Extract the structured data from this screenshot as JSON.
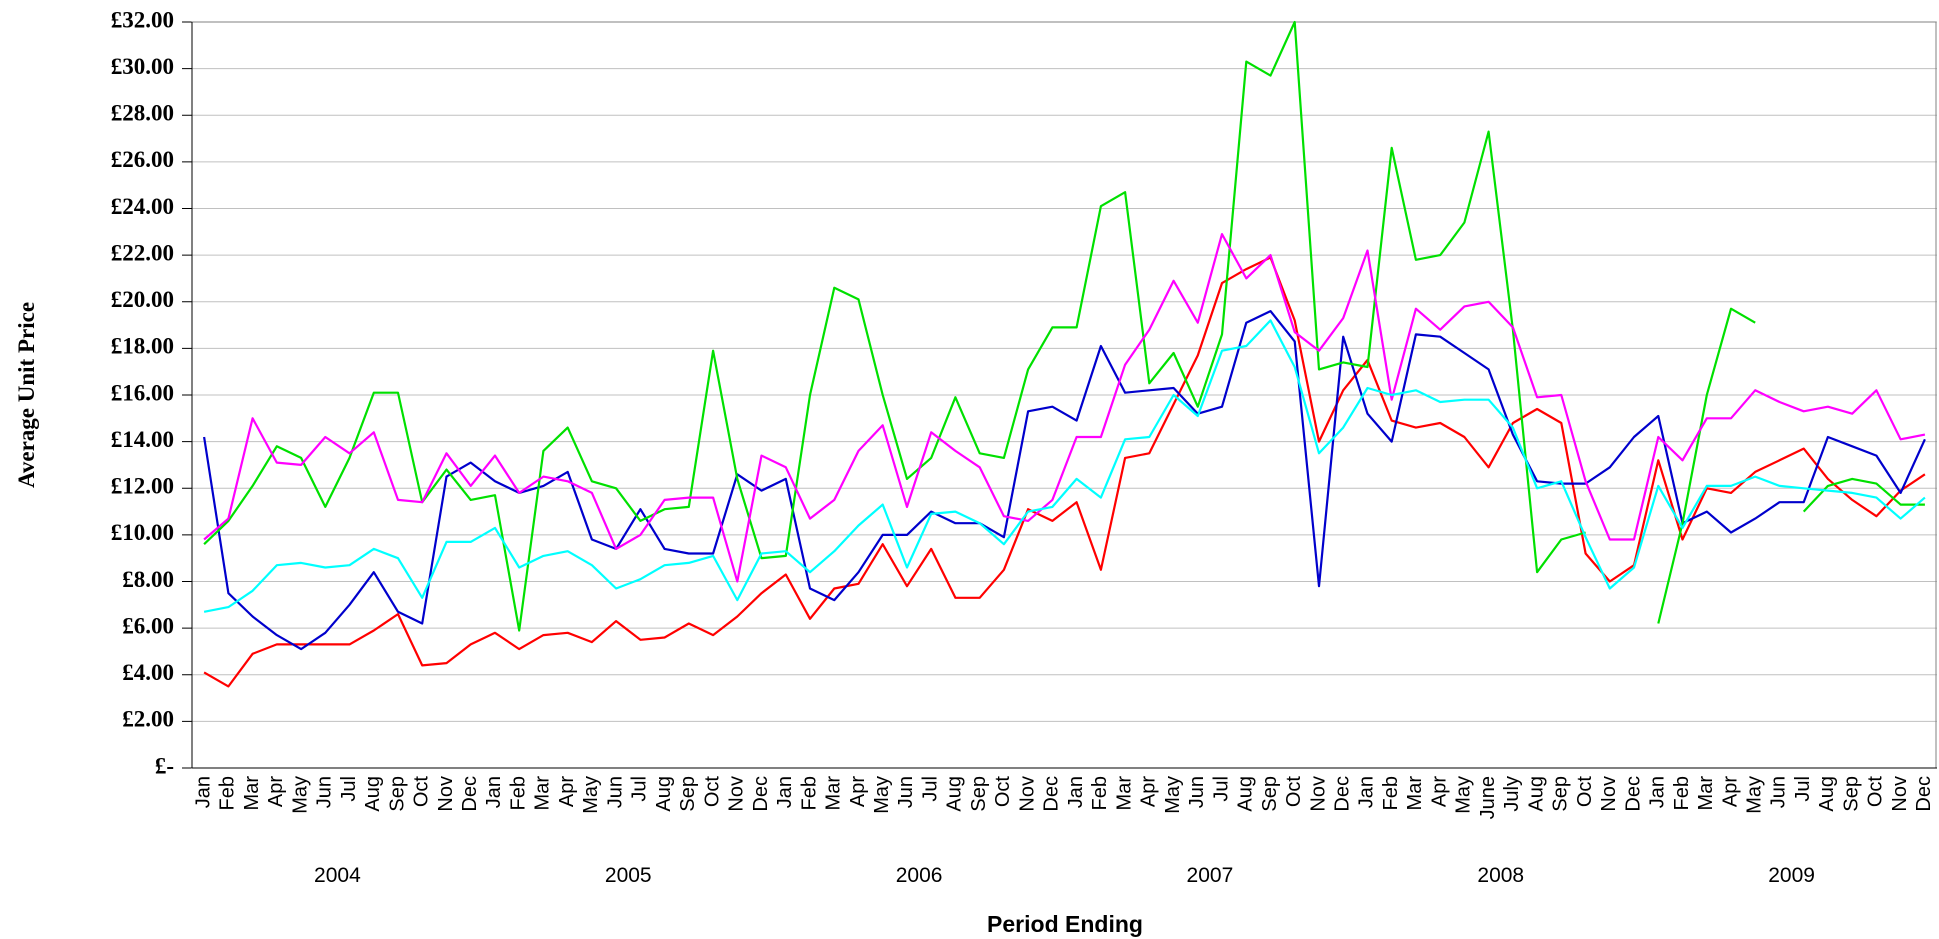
{
  "chart_data": {
    "type": "line",
    "y_label": "Average Unit Price",
    "x_label": "Period Ending",
    "categories": [
      "Jan",
      "Feb",
      "Mar",
      "Apr",
      "May",
      "Jun",
      "Jul",
      "Aug",
      "Sep",
      "Oct",
      "Nov",
      "Dec",
      "Jan",
      "Feb",
      "Mar",
      "Apr",
      "May",
      "Jun",
      "Jul",
      "Aug",
      "Sep",
      "Oct",
      "Nov",
      "Dec",
      "Jan",
      "Feb",
      "Mar",
      "Apr",
      "May",
      "Jun",
      "Jul",
      "Aug",
      "Sep",
      "Oct",
      "Nov",
      "Dec",
      "Jan",
      "Feb",
      "Mar",
      "Apr",
      "May",
      "Jun",
      "Jul",
      "Aug",
      "Sep",
      "Oct",
      "Nov",
      "Dec",
      "Jan",
      "Feb",
      "Mar",
      "Apr",
      "May",
      "June",
      "July",
      "Aug",
      "Sep",
      "Oct",
      "Nov",
      "Dec",
      "Jan",
      "Feb",
      "Mar",
      "Apr",
      "May",
      "Jun",
      "Jul",
      "Aug",
      "Sep",
      "Oct",
      "Nov",
      "Dec"
    ],
    "years": [
      "2004",
      "2005",
      "2006",
      "2007",
      "2008",
      "2009"
    ],
    "ylim": [
      0,
      32
    ],
    "yticks": [
      {
        "value": 0,
        "label": "£-"
      },
      {
        "value": 2,
        "label": "£2.00"
      },
      {
        "value": 4,
        "label": "£4.00"
      },
      {
        "value": 6,
        "label": "£6.00"
      },
      {
        "value": 8,
        "label": "£8.00"
      },
      {
        "value": 10,
        "label": "£10.00"
      },
      {
        "value": 12,
        "label": "£12.00"
      },
      {
        "value": 14,
        "label": "£14.00"
      },
      {
        "value": 16,
        "label": "£16.00"
      },
      {
        "value": 18,
        "label": "£18.00"
      },
      {
        "value": 20,
        "label": "£20.00"
      },
      {
        "value": 22,
        "label": "£22.00"
      },
      {
        "value": 24,
        "label": "£24.00"
      },
      {
        "value": 26,
        "label": "£26.00"
      },
      {
        "value": 28,
        "label": "£28.00"
      },
      {
        "value": 30,
        "label": "£30.00"
      },
      {
        "value": 32,
        "label": "£32.00"
      }
    ],
    "grid": true,
    "series": [
      {
        "color": "#ff0000",
        "values": [
          4.1,
          3.5,
          4.9,
          5.3,
          5.3,
          5.3,
          5.3,
          5.9,
          6.6,
          4.4,
          4.5,
          5.3,
          5.8,
          5.1,
          5.7,
          5.8,
          5.4,
          6.3,
          5.5,
          5.6,
          6.2,
          5.7,
          6.5,
          7.5,
          8.3,
          6.4,
          7.7,
          7.9,
          9.6,
          7.8,
          9.4,
          7.3,
          7.3,
          8.5,
          11.1,
          10.6,
          11.4,
          8.5,
          13.3,
          13.5,
          15.6,
          17.7,
          20.8,
          21.4,
          21.9,
          19.2,
          14.0,
          16.2,
          17.5,
          14.9,
          14.6,
          14.8,
          14.2,
          12.9,
          14.8,
          15.4,
          14.8,
          9.2,
          8.0,
          8.7,
          13.2,
          9.8,
          12.0,
          11.8,
          12.7,
          13.2,
          13.7,
          12.4,
          11.5,
          10.8,
          11.9,
          12.6
        ]
      },
      {
        "color": "#0000cc",
        "values": [
          14.2,
          7.5,
          6.5,
          5.7,
          5.1,
          5.8,
          7.0,
          8.4,
          6.7,
          6.2,
          12.5,
          13.1,
          12.3,
          11.8,
          12.1,
          12.7,
          9.8,
          9.4,
          11.1,
          9.4,
          9.2,
          9.2,
          12.6,
          11.9,
          12.4,
          7.7,
          7.2,
          8.4,
          10.0,
          10.0,
          11.0,
          10.5,
          10.5,
          9.9,
          15.3,
          15.5,
          14.9,
          18.1,
          16.1,
          16.2,
          16.3,
          15.2,
          15.5,
          19.1,
          19.6,
          18.3,
          7.8,
          18.5,
          15.2,
          14.0,
          18.6,
          18.5,
          17.8,
          17.1,
          14.3,
          12.3,
          12.2,
          12.2,
          12.9,
          14.2,
          15.1,
          10.5,
          11.0,
          10.1,
          10.7,
          11.4,
          11.4,
          14.2,
          13.8,
          13.4,
          11.8,
          14.1
        ]
      },
      {
        "color": "#00e000",
        "values": [
          9.6,
          10.6,
          12.1,
          13.8,
          13.3,
          11.2,
          13.3,
          16.1,
          16.1,
          11.4,
          12.8,
          11.5,
          11.7,
          5.9,
          13.6,
          14.6,
          12.3,
          12.0,
          10.6,
          11.1,
          11.2,
          17.9,
          12.4,
          9.0,
          9.1,
          16.0,
          20.6,
          20.1,
          16.0,
          12.4,
          13.3,
          15.9,
          13.5,
          13.3,
          17.1,
          18.9,
          18.9,
          24.1,
          24.7,
          16.5,
          17.8,
          15.5,
          18.6,
          30.3,
          29.7,
          32.0,
          17.1,
          17.4,
          17.2,
          26.6,
          21.8,
          22.0,
          23.4,
          27.3,
          18.8,
          8.4,
          9.8,
          10.1,
          null,
          null,
          6.2,
          10.5,
          16.0,
          19.7,
          19.1,
          null,
          11.0,
          12.1,
          12.4,
          12.2,
          11.3,
          11.3
        ]
      },
      {
        "color": "#ff00ff",
        "values": [
          9.8,
          10.7,
          15.0,
          13.1,
          13.0,
          14.2,
          13.5,
          14.4,
          11.5,
          11.4,
          13.5,
          12.1,
          13.4,
          11.8,
          12.5,
          12.3,
          11.8,
          9.4,
          10.0,
          11.5,
          11.6,
          11.6,
          8.0,
          13.4,
          12.9,
          10.7,
          11.5,
          13.6,
          14.7,
          11.2,
          14.4,
          13.6,
          12.9,
          10.8,
          10.6,
          11.5,
          14.2,
          14.2,
          17.3,
          18.8,
          20.9,
          19.1,
          22.9,
          21.0,
          22.0,
          18.7,
          17.9,
          19.3,
          22.2,
          15.8,
          19.7,
          18.8,
          19.8,
          20.0,
          18.9,
          15.9,
          16.0,
          12.3,
          9.8,
          9.8,
          14.2,
          13.2,
          15.0,
          15.0,
          16.2,
          15.7,
          15.3,
          15.5,
          15.2,
          16.2,
          14.1,
          14.3
        ]
      },
      {
        "color": "#00ffff",
        "values": [
          6.7,
          6.9,
          7.6,
          8.7,
          8.8,
          8.6,
          8.7,
          9.4,
          9.0,
          7.3,
          9.7,
          9.7,
          10.3,
          8.6,
          9.1,
          9.3,
          8.7,
          7.7,
          8.1,
          8.7,
          8.8,
          9.1,
          7.2,
          9.2,
          9.3,
          8.4,
          9.3,
          10.4,
          11.3,
          8.6,
          10.9,
          11.0,
          10.5,
          9.6,
          11.0,
          11.2,
          12.4,
          11.6,
          14.1,
          14.2,
          16.0,
          15.1,
          17.9,
          18.1,
          19.2,
          17.2,
          13.5,
          14.6,
          16.3,
          16.0,
          16.2,
          15.7,
          15.8,
          15.8,
          14.6,
          12.0,
          12.3,
          9.9,
          7.7,
          8.6,
          12.1,
          10.3,
          12.1,
          12.1,
          12.5,
          12.1,
          12.0,
          11.9,
          11.8,
          11.6,
          10.7,
          11.6
        ]
      }
    ]
  }
}
